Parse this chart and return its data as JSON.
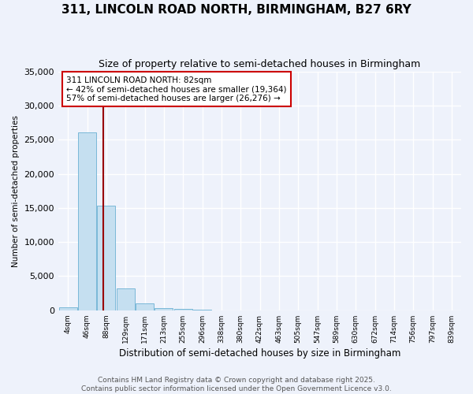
{
  "title": "311, LINCOLN ROAD NORTH, BIRMINGHAM, B27 6RY",
  "subtitle": "Size of property relative to semi-detached houses in Birmingham",
  "xlabel": "Distribution of semi-detached houses by size in Birmingham",
  "ylabel": "Number of semi-detached properties",
  "bin_labels": [
    "4sqm",
    "46sqm",
    "88sqm",
    "129sqm",
    "171sqm",
    "213sqm",
    "255sqm",
    "296sqm",
    "338sqm",
    "380sqm",
    "422sqm",
    "463sqm",
    "505sqm",
    "547sqm",
    "589sqm",
    "630sqm",
    "672sqm",
    "714sqm",
    "756sqm",
    "797sqm",
    "839sqm"
  ],
  "bar_values": [
    400,
    26100,
    15300,
    3200,
    1000,
    380,
    200,
    80,
    15,
    8,
    4,
    3,
    2,
    2,
    1,
    1,
    0,
    0,
    0,
    0,
    0
  ],
  "bar_color": "#c5dff0",
  "bar_edgecolor": "#7ab8d8",
  "annotation_line1": "311 LINCOLN ROAD NORTH: 82sqm",
  "annotation_line2": "← 42% of semi-detached houses are smaller (19,364)",
  "annotation_line3": "57% of semi-detached houses are larger (26,276) →",
  "vline_position": 1.857,
  "ylim": [
    0,
    35000
  ],
  "yticks": [
    0,
    5000,
    10000,
    15000,
    20000,
    25000,
    30000,
    35000
  ],
  "background_color": "#eef2fb",
  "grid_color": "#ffffff",
  "footer_line1": "Contains HM Land Registry data © Crown copyright and database right 2025.",
  "footer_line2": "Contains public sector information licensed under the Open Government Licence v3.0."
}
